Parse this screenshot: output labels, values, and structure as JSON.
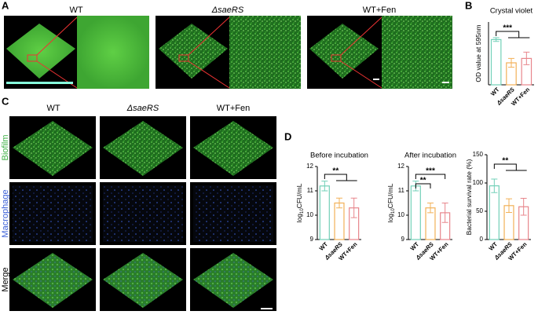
{
  "panels": {
    "labels": [
      "A",
      "B",
      "C",
      "D"
    ],
    "a_columns": [
      "WT",
      "ΔsaeRS",
      "WT+Fen"
    ],
    "c_columns": [
      "WT",
      "ΔsaeRS",
      "WT+Fen"
    ],
    "c_rows": [
      "Biofilm",
      "Macrophage",
      "Merge"
    ]
  },
  "chart_data": [
    {
      "type": "bar",
      "title": "Crystal violet",
      "ylabel": [
        "OD value at 595nm"
      ],
      "categories": [
        "WT",
        "ΔsaeRS",
        "WT+Fen"
      ],
      "values": [
        3.6,
        1.75,
        2.1
      ],
      "errors": [
        0.15,
        0.35,
        0.5
      ],
      "colors": [
        "#72d0b8",
        "#f2b158",
        "#e8868c"
      ],
      "ylim": [
        0,
        5
      ],
      "annotations": [
        "***"
      ]
    },
    {
      "type": "bar",
      "title": "Before incubation",
      "ylabel": [
        "log",
        "10",
        "CFU/mL"
      ],
      "categories": [
        "WT",
        "ΔsaeRS",
        "WT+Fen"
      ],
      "values": [
        11.2,
        10.5,
        10.3
      ],
      "errors": [
        0.2,
        0.2,
        0.4
      ],
      "colors": [
        "#72d0b8",
        "#f2b158",
        "#e8868c"
      ],
      "ylim": [
        9,
        12
      ],
      "yticks": [
        9,
        10,
        11,
        12
      ],
      "annotations": [
        "**"
      ]
    },
    {
      "type": "bar",
      "title": "After incubation",
      "ylabel": [
        "log",
        "10",
        "CFU/mL"
      ],
      "categories": [
        "WT",
        "ΔsaeRS",
        "WT+Fen"
      ],
      "values": [
        11.2,
        10.3,
        10.1
      ],
      "errors": [
        0.2,
        0.2,
        0.4
      ],
      "colors": [
        "#72d0b8",
        "#f2b158",
        "#e8868c"
      ],
      "ylim": [
        9,
        12
      ],
      "yticks": [
        9,
        10,
        11,
        12
      ],
      "annotations": [
        "**",
        "***"
      ]
    },
    {
      "type": "bar",
      "ylabel": [
        "Bacterial survival rate (%)"
      ],
      "categories": [
        "WT",
        "ΔsaeRS",
        "WT+Fen"
      ],
      "values": [
        95,
        60,
        58
      ],
      "errors": [
        12,
        12,
        15
      ],
      "colors": [
        "#72d0b8",
        "#f2b158",
        "#e8868c"
      ],
      "ylim": [
        0,
        150
      ],
      "yticks": [
        0,
        50,
        100,
        150
      ],
      "annotations": [
        "**"
      ]
    }
  ]
}
